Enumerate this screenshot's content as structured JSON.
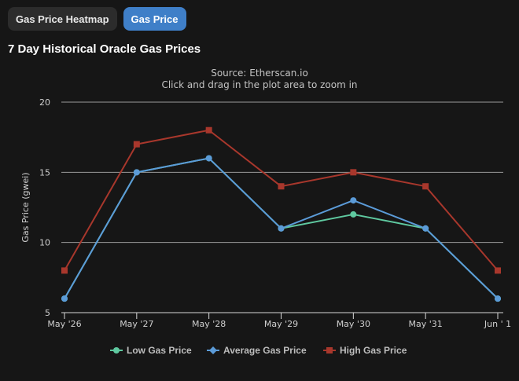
{
  "tabs": [
    {
      "label": "Gas Price Heatmap",
      "active": false
    },
    {
      "label": "Gas Price",
      "active": true
    }
  ],
  "page_title": "7 Day Historical Oracle Gas Prices",
  "chart_data": {
    "type": "line",
    "title": "",
    "subtitle": "Source: Etherscan.io",
    "subtitle2": "Click and drag in the plot area to zoom in",
    "xlabel": "",
    "ylabel": "Gas Price (gwei)",
    "categories": [
      "May '26",
      "May '27",
      "May '28",
      "May '29",
      "May '30",
      "May '31",
      "Jun ' 1"
    ],
    "ylim": [
      5,
      20
    ],
    "yticks": [
      5,
      10,
      15,
      20
    ],
    "grid": true,
    "legend_position": "bottom-center",
    "series": [
      {
        "name": "Low Gas Price",
        "values": [
          6,
          15,
          16,
          11,
          12,
          11,
          6
        ],
        "color": "#5fc9a0",
        "marker": "circle"
      },
      {
        "name": "Average Gas Price",
        "values": [
          6,
          15,
          16,
          11,
          13,
          11,
          6
        ],
        "color": "#5b9bd8",
        "marker": "diamond"
      },
      {
        "name": "High Gas Price",
        "values": [
          8,
          17,
          18,
          14,
          15,
          14,
          8
        ],
        "color": "#a8372c",
        "marker": "square"
      }
    ]
  }
}
